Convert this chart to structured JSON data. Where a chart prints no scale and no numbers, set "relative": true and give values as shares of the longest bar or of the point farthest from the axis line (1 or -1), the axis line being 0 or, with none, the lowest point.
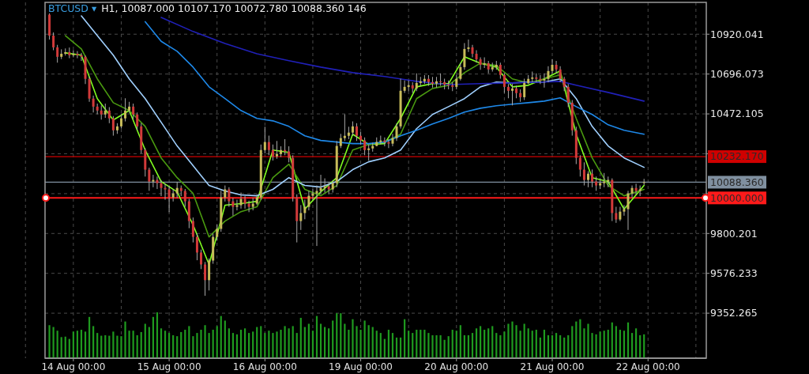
{
  "chart_data": [
    {
      "type": "candlestick",
      "title": "BTCUSD ▾",
      "subtitle": "H1, 10087.000 10107.170 10072.780 10088.360 146",
      "categories": [
        null,
        null,
        null,
        null,
        null,
        null,
        "14 Aug 00:00",
        null,
        null,
        null,
        null,
        null,
        null,
        null,
        null,
        null,
        null,
        null,
        null,
        null,
        null,
        null,
        null,
        null,
        null,
        null,
        null,
        null,
        null,
        null,
        "15 Aug 00:00",
        null,
        null,
        null,
        null,
        null,
        null,
        null,
        null,
        null,
        null,
        null,
        null,
        null,
        null,
        null,
        null,
        null,
        null,
        null,
        null,
        null,
        null,
        null,
        "16 Aug 00:00",
        null,
        null,
        null,
        null,
        null,
        null,
        null,
        null,
        null,
        null,
        null,
        null,
        null,
        null,
        null,
        null,
        null,
        null,
        null,
        null,
        null,
        null,
        null,
        "19 Aug 00:00",
        null,
        null,
        null,
        null,
        null,
        null,
        null,
        null,
        null,
        null,
        null,
        null,
        null,
        null,
        null,
        null,
        null,
        null,
        null,
        null,
        null,
        null,
        null,
        "20 Aug 00:00",
        null,
        null,
        null,
        null,
        null,
        null,
        null,
        null,
        null,
        null,
        null,
        null,
        null,
        null,
        null,
        null,
        null,
        null,
        null,
        null,
        null,
        null,
        null,
        "21 Aug 00:00",
        null,
        null,
        null,
        null,
        null,
        null,
        null,
        null,
        null,
        null,
        null,
        null,
        null,
        null,
        null,
        null,
        null,
        null,
        null,
        null,
        null,
        null,
        null,
        "22 Aug 00:00",
        null,
        null,
        null,
        null,
        null,
        null,
        null,
        null,
        null,
        null,
        null,
        null,
        null,
        null
      ],
      "ohlc": [
        [
          11030,
          11037,
          10890,
          10912
        ],
        [
          10912,
          10930,
          10830,
          10846
        ],
        [
          10846,
          10860,
          10760,
          10793
        ],
        [
          10793,
          10835,
          10780,
          10810
        ],
        [
          10810,
          10840,
          10800,
          10819
        ],
        [
          10819,
          10845,
          10785,
          10802
        ],
        [
          10802,
          10830,
          10790,
          10810
        ],
        [
          10810,
          10825,
          10785,
          10802
        ],
        [
          10802,
          10815,
          10770,
          10793
        ],
        [
          10793,
          10800,
          10640,
          10669
        ],
        [
          10669,
          10680,
          10540,
          10558
        ],
        [
          10558,
          10575,
          10480,
          10513
        ],
        [
          10513,
          10530,
          10470,
          10491
        ],
        [
          10491,
          10520,
          10440,
          10469
        ],
        [
          10469,
          10530,
          10450,
          10491
        ],
        [
          10491,
          10510,
          10420,
          10447
        ],
        [
          10447,
          10460,
          10350,
          10380
        ],
        [
          10380,
          10420,
          10360,
          10402
        ],
        [
          10402,
          10470,
          10390,
          10447
        ],
        [
          10447,
          10560,
          10430,
          10491
        ],
        [
          10491,
          10540,
          10480,
          10513
        ],
        [
          10513,
          10530,
          10440,
          10469
        ],
        [
          10469,
          10480,
          10380,
          10402
        ],
        [
          10402,
          10420,
          10250,
          10269
        ],
        [
          10269,
          10280,
          10120,
          10159
        ],
        [
          10159,
          10170,
          10040,
          10092
        ],
        [
          10092,
          10130,
          10060,
          10101
        ],
        [
          10101,
          10120,
          10050,
          10083
        ],
        [
          10083,
          10100,
          10010,
          10056
        ],
        [
          10056,
          10080,
          9990,
          10048
        ],
        [
          10048,
          10070,
          9920,
          10003
        ],
        [
          10003,
          10050,
          9980,
          10025
        ],
        [
          10025,
          10090,
          10000,
          10056
        ],
        [
          10056,
          10070,
          10010,
          10039
        ],
        [
          10039,
          10050,
          9950,
          9981
        ],
        [
          9981,
          9995,
          9830,
          9870
        ],
        [
          9870,
          9890,
          9750,
          9781
        ],
        [
          9781,
          9800,
          9650,
          9693
        ],
        [
          9693,
          9710,
          9600,
          9626
        ],
        [
          9626,
          9640,
          9450,
          9538
        ],
        [
          9538,
          9660,
          9480,
          9648
        ],
        [
          9648,
          9800,
          9630,
          9781
        ],
        [
          9781,
          9850,
          9760,
          9826
        ],
        [
          9826,
          10040,
          9810,
          10003
        ],
        [
          10003,
          10070,
          9980,
          10048
        ],
        [
          10048,
          10060,
          9950,
          9981
        ],
        [
          9981,
          10000,
          9900,
          9950
        ],
        [
          9950,
          9990,
          9930,
          9959
        ],
        [
          9959,
          10030,
          9940,
          9994
        ],
        [
          9994,
          10010,
          9940,
          9968
        ],
        [
          9968,
          9985,
          9920,
          9950
        ],
        [
          9950,
          10000,
          9930,
          9968
        ],
        [
          9968,
          10020,
          9960,
          10003
        ],
        [
          10003,
          10300,
          9990,
          10269
        ],
        [
          10269,
          10400,
          10250,
          10314
        ],
        [
          10314,
          10350,
          10240,
          10269
        ],
        [
          10269,
          10300,
          10210,
          10234
        ],
        [
          10234,
          10320,
          10220,
          10247
        ],
        [
          10247,
          10290,
          10230,
          10269
        ],
        [
          10269,
          10330,
          10240,
          10261
        ],
        [
          10261,
          10290,
          10200,
          10225
        ],
        [
          10225,
          10240,
          9980,
          10003
        ],
        [
          10003,
          10020,
          9750,
          9870
        ],
        [
          9870,
          9960,
          9820,
          9915
        ],
        [
          9915,
          9990,
          9880,
          9950
        ],
        [
          9950,
          10040,
          9930,
          10012
        ],
        [
          10012,
          10050,
          9990,
          10025
        ],
        [
          10025,
          10070,
          9730,
          10039
        ],
        [
          10039,
          10130,
          10020,
          10056
        ],
        [
          10056,
          10110,
          10030,
          10065
        ],
        [
          10065,
          10090,
          10020,
          10048
        ],
        [
          10048,
          10100,
          10030,
          10083
        ],
        [
          10083,
          10320,
          10060,
          10292
        ],
        [
          10292,
          10360,
          10280,
          10336
        ],
        [
          10336,
          10470,
          10320,
          10349
        ],
        [
          10349,
          10400,
          10330,
          10367
        ],
        [
          10367,
          10430,
          10350,
          10402
        ],
        [
          10402,
          10420,
          10320,
          10349
        ],
        [
          10349,
          10370,
          10300,
          10323
        ],
        [
          10323,
          10340,
          10240,
          10269
        ],
        [
          10269,
          10300,
          10210,
          10278
        ],
        [
          10278,
          10310,
          10260,
          10292
        ],
        [
          10292,
          10340,
          10290,
          10314
        ],
        [
          10314,
          10350,
          10300,
          10323
        ],
        [
          10323,
          10340,
          10290,
          10314
        ],
        [
          10314,
          10330,
          10280,
          10305
        ],
        [
          10305,
          10360,
          10290,
          10336
        ],
        [
          10336,
          10420,
          10320,
          10402
        ],
        [
          10402,
          10670,
          10390,
          10602
        ],
        [
          10602,
          10660,
          10590,
          10624
        ],
        [
          10624,
          10660,
          10600,
          10633
        ],
        [
          10633,
          10650,
          10590,
          10615
        ],
        [
          10615,
          10700,
          10600,
          10646
        ],
        [
          10646,
          10680,
          10630,
          10655
        ],
        [
          10655,
          10690,
          10640,
          10669
        ],
        [
          10669,
          10690,
          10630,
          10651
        ],
        [
          10651,
          10680,
          10620,
          10642
        ],
        [
          10642,
          10680,
          10620,
          10655
        ],
        [
          10655,
          10700,
          10630,
          10651
        ],
        [
          10651,
          10670,
          10610,
          10637
        ],
        [
          10637,
          10660,
          10610,
          10633
        ],
        [
          10633,
          10650,
          10600,
          10624
        ],
        [
          10624,
          10690,
          10610,
          10669
        ],
        [
          10669,
          10760,
          10660,
          10735
        ],
        [
          10735,
          10870,
          10720,
          10837
        ],
        [
          10837,
          10890,
          10820,
          10846
        ],
        [
          10846,
          10860,
          10790,
          10810
        ],
        [
          10810,
          10830,
          10760,
          10779
        ],
        [
          10779,
          10790,
          10720,
          10748
        ],
        [
          10748,
          10790,
          10730,
          10757
        ],
        [
          10757,
          10770,
          10700,
          10722
        ],
        [
          10722,
          10760,
          10710,
          10735
        ],
        [
          10735,
          10770,
          10720,
          10748
        ],
        [
          10748,
          10760,
          10670,
          10691
        ],
        [
          10691,
          10700,
          10590,
          10624
        ],
        [
          10624,
          10640,
          10560,
          10602
        ],
        [
          10602,
          10640,
          10520,
          10615
        ],
        [
          10615,
          10630,
          10560,
          10589
        ],
        [
          10589,
          10610,
          10540,
          10566
        ],
        [
          10566,
          10670,
          10550,
          10646
        ],
        [
          10646,
          10690,
          10640,
          10669
        ],
        [
          10669,
          10710,
          10650,
          10677
        ],
        [
          10677,
          10700,
          10650,
          10669
        ],
        [
          10669,
          10690,
          10640,
          10660
        ],
        [
          10660,
          10700,
          10620,
          10669
        ],
        [
          10669,
          10740,
          10650,
          10713
        ],
        [
          10713,
          10780,
          10700,
          10748
        ],
        [
          10748,
          10770,
          10700,
          10722
        ],
        [
          10722,
          10740,
          10650,
          10669
        ],
        [
          10669,
          10680,
          10600,
          10624
        ],
        [
          10624,
          10640,
          10510,
          10535
        ],
        [
          10535,
          10550,
          10350,
          10380
        ],
        [
          10380,
          10400,
          10190,
          10225
        ],
        [
          10225,
          10240,
          10120,
          10159
        ],
        [
          10159,
          10200,
          10070,
          10101
        ],
        [
          10101,
          10150,
          10060,
          10136
        ],
        [
          10136,
          10160,
          10060,
          10092
        ],
        [
          10092,
          10120,
          10040,
          10070
        ],
        [
          10070,
          10110,
          10050,
          10083
        ],
        [
          10083,
          10140,
          10060,
          10092
        ],
        [
          10092,
          10120,
          10060,
          10101
        ],
        [
          10101,
          10110,
          9870,
          9915
        ],
        [
          9915,
          9950,
          9860,
          9879
        ],
        [
          9879,
          9950,
          9870,
          9923
        ],
        [
          9923,
          9960,
          9900,
          9937
        ],
        [
          9937,
          10040,
          9820,
          10025
        ],
        [
          10025,
          10070,
          10000,
          10056
        ],
        [
          10056,
          10080,
          10020,
          10039
        ],
        [
          10039,
          10070,
          10010,
          10048
        ],
        [
          10087,
          10107.17,
          10072.78,
          10088.36
        ],
        null,
        null,
        null,
        null,
        null,
        null,
        null,
        null,
        null,
        null,
        null,
        null,
        null,
        null,
        null
      ],
      "series": [
        {
          "type": "line",
          "color": "#80ff20",
          "values": [
            null,
            null,
            null,
            null,
            10815,
            null,
            null,
            null,
            10802,
            null,
            null,
            null,
            10558,
            null,
            null,
            null,
            10438,
            null,
            null,
            null,
            10491,
            null,
            null,
            null,
            10269,
            null,
            null,
            null,
            10092,
            null,
            null,
            null,
            10034,
            null,
            null,
            null,
            9848,
            null,
            null,
            null,
            9626,
            null,
            null,
            null,
            9959,
            null,
            null,
            null,
            9968,
            null,
            null,
            null,
            9981,
            null,
            null,
            null,
            10269,
            null,
            null,
            null,
            10256,
            null,
            null,
            null,
            9937,
            null,
            null,
            null,
            10034,
            null,
            null,
            null,
            10114,
            null,
            null,
            null,
            10358,
            null,
            null,
            null,
            10300,
            null,
            null,
            null,
            10305,
            null,
            null,
            null,
            10447,
            null,
            null,
            null,
            10624,
            null,
            null,
            null,
            10642,
            null,
            null,
            null,
            10642,
            null,
            null,
            null,
            10793,
            null,
            null,
            null,
            10757,
            null,
            null,
            null,
            10735,
            null,
            null,
            null,
            10624,
            null,
            null,
            null,
            10633,
            null,
            null,
            null,
            10669,
            null,
            null,
            null,
            10713,
            null,
            null,
            null,
            10358,
            null,
            null,
            null,
            10114,
            null,
            null,
            null,
            10092,
            null,
            null,
            null,
            9937,
            null,
            null,
            null,
            null,
            10070,
            null,
            null,
            null,
            null,
            null,
            null,
            null,
            null,
            null,
            null,
            null,
            null,
            null,
            null,
            null
          ]
        },
        {
          "type": "line",
          "color": "#4a9a10",
          "values": [
            null,
            null,
            null,
            null,
            10912,
            null,
            null,
            null,
            10837,
            null,
            null,
            null,
            10669,
            null,
            null,
            null,
            10535,
            null,
            null,
            null,
            10491,
            null,
            null,
            null,
            10402,
            null,
            null,
            null,
            10225,
            null,
            null,
            null,
            10114,
            null,
            null,
            null,
            10025,
            null,
            null,
            null,
            9781,
            null,
            null,
            null,
            9870,
            null,
            null,
            null,
            9923,
            null,
            null,
            null,
            9950,
            null,
            null,
            null,
            10114,
            null,
            null,
            null,
            10190,
            null,
            null,
            null,
            10048,
            null,
            null,
            null,
            10012,
            null,
            null,
            null,
            10070,
            null,
            null,
            null,
            10269,
            null,
            null,
            null,
            10300,
            null,
            null,
            null,
            10314,
            null,
            null,
            null,
            10358,
            null,
            null,
            null,
            10558,
            null,
            null,
            null,
            10615,
            null,
            null,
            null,
            10633,
            null,
            null,
            null,
            10704,
            null,
            null,
            null,
            10757,
            null,
            null,
            null,
            10744,
            null,
            null,
            null,
            10669,
            null,
            null,
            null,
            10646,
            null,
            null,
            null,
            10669,
            null,
            null,
            null,
            10691,
            null,
            null,
            null,
            10447,
            null,
            null,
            null,
            10225,
            null,
            null,
            null,
            10070,
            null,
            null,
            null,
            10012,
            null,
            null,
            null,
            null,
            10048,
            null,
            null,
            null,
            null,
            null,
            null,
            null,
            null,
            null,
            null,
            null,
            null,
            null,
            null,
            null
          ]
        },
        {
          "type": "line",
          "color": "#a0d0ff",
          "values": [
            null,
            null,
            null,
            null,
            null,
            null,
            null,
            null,
            11023,
            null,
            null,
            null,
            10912,
            null,
            null,
            null,
            10802,
            null,
            null,
            null,
            10669,
            null,
            null,
            null,
            10558,
            null,
            null,
            null,
            10425,
            null,
            null,
            null,
            10292,
            null,
            null,
            null,
            10181,
            null,
            null,
            null,
            10070,
            null,
            null,
            null,
            10039,
            null,
            null,
            null,
            10017,
            null,
            null,
            null,
            10012,
            null,
            null,
            null,
            10048,
            null,
            null,
            null,
            10114,
            null,
            null,
            null,
            10070,
            null,
            null,
            null,
            10061,
            null,
            null,
            null,
            10092,
            null,
            null,
            null,
            10159,
            null,
            null,
            null,
            10203,
            null,
            null,
            null,
            10225,
            null,
            null,
            null,
            10269,
            null,
            null,
            null,
            10389,
            null,
            null,
            null,
            10469,
            null,
            null,
            null,
            10513,
            null,
            null,
            null,
            10558,
            null,
            null,
            null,
            10624,
            null,
            null,
            null,
            10651,
            null,
            null,
            null,
            10646,
            null,
            null,
            null,
            10651,
            null,
            null,
            null,
            10651,
            null,
            null,
            null,
            10669,
            null,
            null,
            null,
            10558,
            null,
            null,
            null,
            10402,
            null,
            null,
            null,
            10292,
            null,
            null,
            null,
            10225,
            null,
            null,
            null,
            null,
            10172,
            null,
            null,
            null,
            null,
            null,
            null,
            null,
            null,
            null,
            null,
            null,
            null,
            null,
            null,
            null
          ]
        },
        {
          "type": "line",
          "color": "#1e88e8",
          "values": [
            null,
            null,
            null,
            null,
            null,
            null,
            null,
            null,
            null,
            null,
            null,
            null,
            null,
            null,
            null,
            null,
            null,
            null,
            null,
            null,
            null,
            null,
            null,
            null,
            10990,
            null,
            null,
            null,
            10880,
            null,
            null,
            null,
            10824,
            null,
            null,
            null,
            10735,
            null,
            null,
            null,
            10624,
            null,
            null,
            null,
            10558,
            null,
            null,
            null,
            10491,
            null,
            null,
            null,
            10447,
            null,
            null,
            null,
            10433,
            null,
            null,
            null,
            10402,
            null,
            null,
            null,
            10349,
            null,
            null,
            null,
            10323,
            null,
            null,
            null,
            10314,
            null,
            null,
            null,
            10305,
            null,
            null,
            null,
            10305,
            null,
            null,
            null,
            10314,
            null,
            null,
            null,
            10349,
            null,
            null,
            null,
            10380,
            null,
            null,
            null,
            10416,
            null,
            null,
            null,
            10447,
            null,
            null,
            null,
            10482,
            null,
            null,
            null,
            10504,
            null,
            null,
            null,
            10518,
            null,
            null,
            null,
            10527,
            null,
            null,
            null,
            10535,
            null,
            null,
            null,
            10544,
            null,
            null,
            null,
            10562,
            null,
            null,
            null,
            10513,
            null,
            null,
            null,
            10469,
            null,
            null,
            null,
            10411,
            null,
            null,
            null,
            10380,
            null,
            null,
            null,
            null,
            10358,
            null,
            null,
            null,
            null,
            null,
            null,
            null,
            null,
            null,
            null,
            null,
            null,
            null,
            null,
            null
          ]
        },
        {
          "type": "line",
          "color": "#2020b8",
          "values": [
            null,
            null,
            null,
            null,
            null,
            null,
            null,
            null,
            null,
            null,
            null,
            null,
            null,
            null,
            null,
            null,
            null,
            null,
            null,
            null,
            null,
            null,
            null,
            null,
            null,
            null,
            null,
            null,
            11014,
            null,
            null,
            null,
            null,
            null,
            null,
            null,
            10935,
            null,
            null,
            null,
            null,
            null,
            null,
            null,
            10868,
            null,
            null,
            null,
            null,
            null,
            null,
            null,
            10810,
            null,
            null,
            null,
            null,
            null,
            null,
            null,
            10771,
            null,
            null,
            null,
            null,
            null,
            null,
            null,
            10735,
            null,
            null,
            null,
            null,
            null,
            null,
            null,
            10704,
            null,
            null,
            null,
            null,
            null,
            null,
            null,
            10682,
            null,
            null,
            null,
            null,
            null,
            null,
            null,
            10655,
            null,
            null,
            null,
            null,
            null,
            null,
            null,
            10637,
            null,
            null,
            null,
            null,
            null,
            null,
            null,
            10642,
            null,
            null,
            null,
            null,
            null,
            null,
            null,
            10646,
            null,
            null,
            null,
            null,
            null,
            null,
            null,
            10651,
            null,
            null,
            null,
            10655,
            null,
            null,
            null,
            10633,
            null,
            null,
            null,
            null,
            null,
            null,
            null,
            10593,
            null,
            null,
            null,
            null,
            null,
            null,
            null,
            null,
            10544,
            null,
            null,
            null,
            null,
            null,
            null,
            null,
            null,
            null,
            null,
            null,
            null,
            null,
            null,
            null
          ]
        }
      ],
      "ylim": [
        9099.5,
        11098.8
      ],
      "yticks": [
        9352.265,
        9576.233,
        9800.201,
        {
          "value": 10024.169,
          "label": null
        },
        {
          "value": 10248.137,
          "label": null
        },
        10472.105,
        10696.073,
        10920.041
      ],
      "grid": true,
      "ref_lines": [
        {
          "axis": "y",
          "value": 10232.17,
          "label": "10232.170",
          "color": "#d00000"
        },
        {
          "axis": "y",
          "value": 10088.36,
          "label": "10088.360",
          "color": "#8090a0"
        },
        {
          "axis": "y",
          "value": 10000,
          "label": "10000.000",
          "color": "#ff1a1a"
        }
      ]
    },
    {
      "type": "bar",
      "relative": true,
      "tick_labels": false,
      "color": "#1f9a1f",
      "categories": [
        null,
        null,
        null,
        null,
        null,
        null,
        null,
        null,
        null,
        null,
        null,
        null,
        null,
        null,
        null,
        null,
        null,
        null,
        null,
        null,
        null,
        null,
        null,
        null,
        null,
        null,
        null,
        null,
        null,
        null,
        null,
        null,
        null,
        null,
        null,
        null,
        null,
        null,
        null,
        null,
        null,
        null,
        null,
        null,
        null,
        null,
        null,
        null,
        null,
        null,
        null,
        null,
        null,
        null,
        null,
        null,
        null,
        null,
        null,
        null,
        null,
        null,
        null,
        null,
        null,
        null,
        null,
        null,
        null,
        null,
        null,
        null,
        null,
        null,
        null,
        null,
        null,
        null,
        null,
        null,
        null,
        null,
        null,
        null,
        null,
        null,
        null,
        null,
        null,
        null,
        null,
        null,
        null,
        null,
        null,
        null,
        null,
        null,
        null,
        null,
        null,
        null,
        null,
        null,
        null,
        null,
        null,
        null,
        null,
        null,
        null,
        null,
        null,
        null,
        null,
        null,
        null,
        null,
        null,
        null,
        null,
        null,
        null,
        null,
        null,
        null,
        null,
        null,
        null,
        null,
        null,
        null,
        null,
        null,
        null,
        null,
        null,
        null,
        null,
        null,
        null,
        null,
        null,
        null,
        null,
        null,
        null,
        null,
        null,
        null,
        null,
        null,
        null,
        null,
        null,
        null,
        null,
        null,
        null,
        null,
        null,
        null,
        null,
        null,
        null
      ],
      "values": [
        0.72,
        0.68,
        0.6,
        0.46,
        0.47,
        0.42,
        0.58,
        0.6,
        0.62,
        0.58,
        0.9,
        0.7,
        0.55,
        0.49,
        0.5,
        0.49,
        0.58,
        0.49,
        0.48,
        0.8,
        0.6,
        0.6,
        0.5,
        0.57,
        0.75,
        0.68,
        0.9,
        1.0,
        0.65,
        0.6,
        0.55,
        0.5,
        0.48,
        0.57,
        0.62,
        0.7,
        0.48,
        0.55,
        0.62,
        0.72,
        0.55,
        0.62,
        0.7,
        0.92,
        0.82,
        0.65,
        0.55,
        0.52,
        0.62,
        0.65,
        0.55,
        0.58,
        0.68,
        0.7,
        0.55,
        0.6,
        0.55,
        0.58,
        0.62,
        0.7,
        0.65,
        0.7,
        0.55,
        0.88,
        0.68,
        0.75,
        0.6,
        0.92,
        0.75,
        0.68,
        0.65,
        0.82,
        0.98,
        0.98,
        0.75,
        0.62,
        0.85,
        0.7,
        0.62,
        0.82,
        0.72,
        0.68,
        0.6,
        0.55,
        0.42,
        0.62,
        0.55,
        0.45,
        0.45,
        0.85,
        0.6,
        0.55,
        0.62,
        0.62,
        0.62,
        0.55,
        0.5,
        0.5,
        0.5,
        0.4,
        0.48,
        0.62,
        0.6,
        0.72,
        0.5,
        0.5,
        0.55,
        0.65,
        0.7,
        0.62,
        0.65,
        0.7,
        0.55,
        0.5,
        0.58,
        0.75,
        0.8,
        0.72,
        0.6,
        0.75,
        0.65,
        0.6,
        0.62,
        0.45,
        0.62,
        0.5,
        0.5,
        0.55,
        0.5,
        0.45,
        0.5,
        0.7,
        0.8,
        0.85,
        0.65,
        0.75,
        0.55,
        0.52,
        0.58,
        0.6,
        0.62,
        0.78,
        0.7,
        0.62,
        0.6,
        0.78,
        0.55,
        0.65,
        0.5,
        0.52,
        null,
        null,
        null,
        null,
        null,
        null,
        null,
        null,
        null,
        null,
        null,
        null,
        null,
        null,
        null
      ]
    }
  ]
}
